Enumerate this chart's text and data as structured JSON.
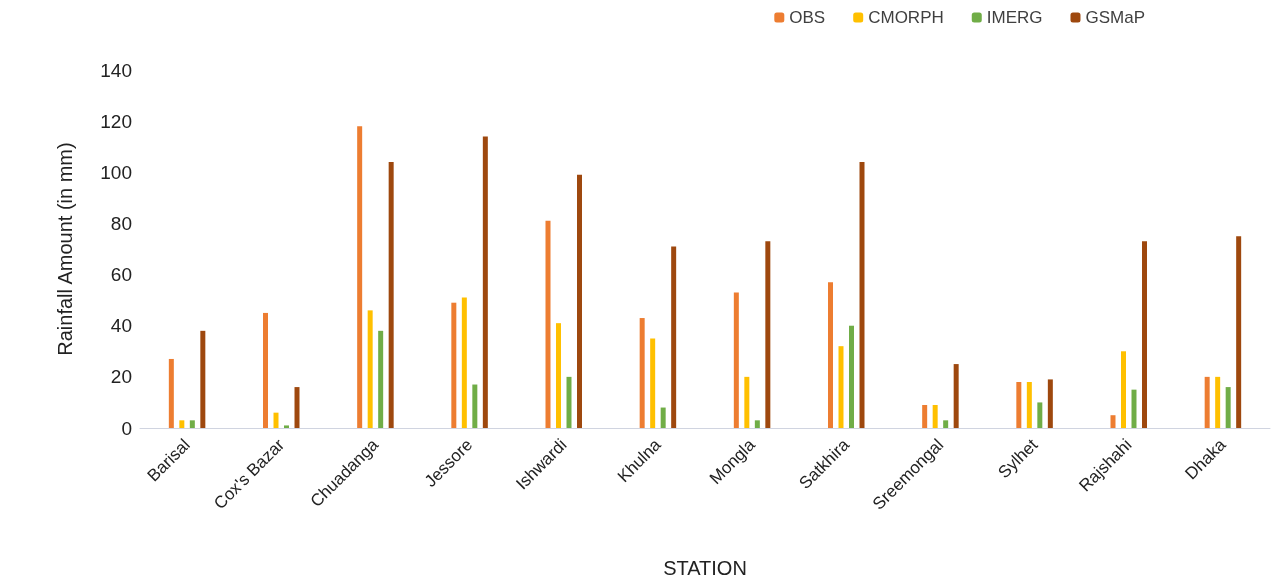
{
  "chart_data": {
    "type": "bar",
    "xlabel": "STATION",
    "ylabel": "Rainfall Amount (in mm)",
    "categories": [
      "Barisal",
      "Cox's Bazar",
      "Chuadanga",
      "Jessore",
      "Ishwardi",
      "Khulna",
      "Mongla",
      "Satkhira",
      "Sreemongal",
      "Sylhet",
      "Rajshahi",
      "Dhaka"
    ],
    "series": [
      {
        "name": "OBS",
        "color": "#ed7d31",
        "values": [
          27,
          45,
          118,
          49,
          81,
          43,
          53,
          57,
          9,
          18,
          5,
          20
        ]
      },
      {
        "name": "CMORPH",
        "color": "#ffc000",
        "values": [
          3,
          6,
          46,
          51,
          41,
          35,
          20,
          32,
          9,
          18,
          30,
          20
        ]
      },
      {
        "name": "IMERG",
        "color": "#70ad47",
        "values": [
          3,
          1,
          38,
          17,
          20,
          8,
          3,
          40,
          3,
          10,
          15,
          16
        ]
      },
      {
        "name": "GSMaP",
        "color": "#9e480e",
        "values": [
          38,
          16,
          104,
          114,
          99,
          71,
          73,
          104,
          25,
          19,
          73,
          75
        ]
      }
    ],
    "ylim": [
      0,
      140
    ],
    "yticks": [
      0,
      20,
      40,
      60,
      80,
      100,
      120,
      140
    ],
    "grid": false,
    "legend": "top right"
  }
}
